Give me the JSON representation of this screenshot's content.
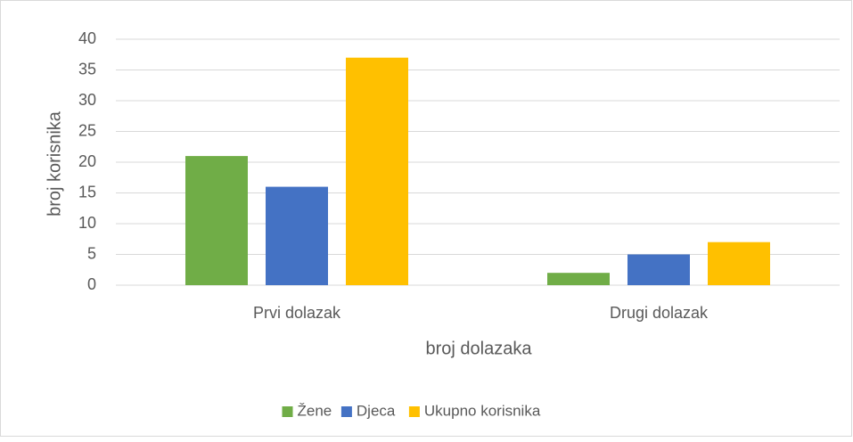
{
  "chart_data": {
    "type": "bar",
    "categories": [
      "Prvi dolazak",
      "Drugi dolazak"
    ],
    "series": [
      {
        "name": "Žene",
        "color": "#70ad47",
        "values": [
          21,
          2
        ]
      },
      {
        "name": "Djeca",
        "color": "#4472c4",
        "values": [
          16,
          5
        ]
      },
      {
        "name": "Ukupno korisnika",
        "color": "#ffc000",
        "values": [
          37,
          7
        ]
      }
    ],
    "x_label": "broj dolazaka",
    "y_label": "broj korisnika",
    "ylim": [
      0,
      40
    ],
    "yticks": [
      0,
      5,
      10,
      15,
      20,
      25,
      30,
      35,
      40
    ],
    "grid": true,
    "legend": "bottom"
  }
}
